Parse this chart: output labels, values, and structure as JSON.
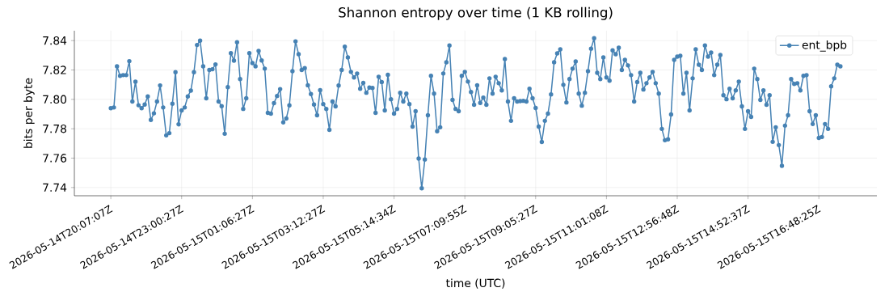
{
  "chart_data": {
    "type": "line",
    "title": "Shannon entropy over time (1 KB rolling)",
    "xlabel": "time (UTC)",
    "ylabel": "bits per byte",
    "categories": [
      "2026-05-14T20:07:07Z",
      null,
      null,
      null,
      null,
      null,
      null,
      null,
      null,
      null,
      null,
      null,
      null,
      null,
      null,
      null,
      null,
      null,
      null,
      null,
      null,
      null,
      null,
      "2026-05-14T23:00:27Z",
      null,
      null,
      null,
      null,
      null,
      null,
      null,
      null,
      null,
      null,
      null,
      null,
      null,
      null,
      null,
      null,
      null,
      null,
      null,
      null,
      null,
      null,
      "2026-05-15T01:06:27Z",
      null,
      null,
      null,
      null,
      null,
      null,
      null,
      null,
      null,
      null,
      null,
      null,
      null,
      null,
      null,
      null,
      null,
      null,
      null,
      null,
      null,
      null,
      "2026-05-15T03:12:27Z",
      null,
      null,
      null,
      null,
      null,
      null,
      null,
      null,
      null,
      null,
      null,
      null,
      null,
      null,
      null,
      null,
      null,
      null,
      null,
      null,
      null,
      null,
      "2026-05-15T05:14:34Z",
      null,
      null,
      null,
      null,
      null,
      null,
      null,
      null,
      null,
      null,
      null,
      null,
      null,
      null,
      null,
      null,
      null,
      null,
      null,
      null,
      null,
      null,
      "2026-05-15T07:09:55Z",
      null,
      null,
      null,
      null,
      null,
      null,
      null,
      null,
      null,
      null,
      null,
      null,
      null,
      null,
      null,
      null,
      null,
      null,
      null,
      null,
      null,
      null,
      "2026-05-15T09:05:27Z",
      null,
      null,
      null,
      null,
      null,
      null,
      null,
      null,
      null,
      null,
      null,
      null,
      null,
      null,
      null,
      null,
      null,
      null,
      null,
      null,
      null,
      null,
      "2026-05-15T11:01:08Z",
      null,
      null,
      null,
      null,
      null,
      null,
      null,
      null,
      null,
      null,
      null,
      null,
      null,
      null,
      null,
      null,
      null,
      null,
      null,
      null,
      null,
      null,
      "2026-05-15T12:56:48Z",
      null,
      null,
      null,
      null,
      null,
      null,
      null,
      null,
      null,
      null,
      null,
      null,
      null,
      null,
      null,
      null,
      null,
      null,
      null,
      null,
      null,
      null,
      "2026-05-15T14:52:37Z",
      null,
      null,
      null,
      null,
      null,
      null,
      null,
      null,
      null,
      null,
      null,
      null,
      null,
      null,
      null,
      null,
      null,
      null,
      null,
      null,
      null,
      null,
      "2026-05-15T16:48:25Z",
      null,
      null,
      null,
      null,
      null,
      null,
      null
    ],
    "series": [
      {
        "name": "ent_bpb",
        "color": "#4682b4",
        "values": [
          7.794,
          7.7945,
          7.8225,
          7.816,
          7.8165,
          7.8165,
          7.826,
          7.7985,
          7.812,
          7.796,
          7.794,
          7.7965,
          7.802,
          7.786,
          7.7905,
          7.7985,
          7.8095,
          7.7945,
          7.7755,
          7.777,
          7.797,
          7.8185,
          7.783,
          7.7925,
          7.7945,
          7.802,
          7.806,
          7.8185,
          7.837,
          7.84,
          7.8225,
          7.8007,
          7.82,
          7.8205,
          7.8238,
          7.7985,
          7.7954,
          7.7766,
          7.8083,
          7.8314,
          7.8263,
          7.8389,
          7.8138,
          7.7935,
          7.8007,
          7.8314,
          7.8247,
          7.8225,
          7.8329,
          7.8265,
          7.8209,
          7.7908,
          7.7903,
          7.7974,
          7.8023,
          7.807,
          7.7843,
          7.787,
          7.7959,
          7.8192,
          7.8395,
          7.8307,
          7.82,
          7.8213,
          7.8096,
          7.8036,
          7.7965,
          7.7892,
          7.8063,
          7.7968,
          7.7935,
          7.7793,
          7.7985,
          7.7952,
          7.8094,
          7.82,
          7.8358,
          7.8285,
          7.8187,
          7.8149,
          7.8176,
          7.8072,
          7.8112,
          7.8045,
          7.808,
          7.8078,
          7.7908,
          7.8154,
          7.8118,
          7.7925,
          7.8167,
          7.8001,
          7.7903,
          7.7935,
          7.8045,
          7.7985,
          7.8039,
          7.7968,
          7.7815,
          7.7919,
          7.7597,
          7.7395,
          7.7591,
          7.7892,
          7.816,
          7.8039,
          7.7783,
          7.781,
          7.8176,
          7.8252,
          7.8367,
          7.7996,
          7.7935,
          7.7919,
          7.816,
          7.8187,
          7.8121,
          7.805,
          7.7963,
          7.8096,
          7.7976,
          7.8012,
          7.7963,
          7.8143,
          7.8039,
          7.8154,
          7.811,
          7.8061,
          7.8274,
          7.7985,
          7.7854,
          7.8007,
          7.7985,
          7.7988,
          7.799,
          7.7985,
          7.8072,
          7.8007,
          7.7941,
          7.7815,
          7.771,
          7.7854,
          7.7903,
          7.8034,
          7.8252,
          7.8313,
          7.834,
          7.8099,
          7.7979,
          7.8138,
          7.8209,
          7.8258,
          7.8039,
          7.7957,
          7.8045,
          7.8192,
          7.8345,
          7.8416,
          7.8181,
          7.8138,
          7.8285,
          7.8149,
          7.8127,
          7.8334,
          7.8307,
          7.8351,
          7.82,
          7.8269,
          7.8231,
          7.8165,
          7.7985,
          7.8118,
          7.8181,
          7.8067,
          7.811,
          7.8149,
          7.8187,
          7.811,
          7.8039,
          7.7799,
          7.7722,
          7.7728,
          7.7897,
          7.8269,
          7.8291,
          7.8296,
          7.8039,
          7.8181,
          7.7925,
          7.8143,
          7.834,
          7.8236,
          7.82,
          7.8367,
          7.8291,
          7.8318,
          7.8165,
          7.8236,
          7.8302,
          7.8028,
          7.8001,
          7.8072,
          7.8007,
          7.8061,
          7.8121,
          7.7952,
          7.7799,
          7.7919,
          7.7881,
          7.8209,
          7.8138,
          7.7996,
          7.8061,
          7.7963,
          7.8028,
          7.7711,
          7.781,
          7.7689,
          7.7548,
          7.7821,
          7.7892,
          7.8138,
          7.8105,
          7.811,
          7.8061,
          7.816,
          7.8165,
          7.7919,
          7.7832,
          7.7892,
          7.7738,
          7.7744,
          7.7832,
          7.7799,
          7.8089,
          7.8143,
          7.8236,
          7.8225
        ]
      }
    ],
    "ylim": [
      7.7344,
      7.8467
    ],
    "yticks": [
      7.74,
      7.76,
      7.78,
      {
        "value": 7.8,
        "label": "7.80"
      },
      7.82,
      7.84
    ],
    "grid": true,
    "legend": "top right",
    "marker": "circle",
    "line_style": "solid"
  }
}
